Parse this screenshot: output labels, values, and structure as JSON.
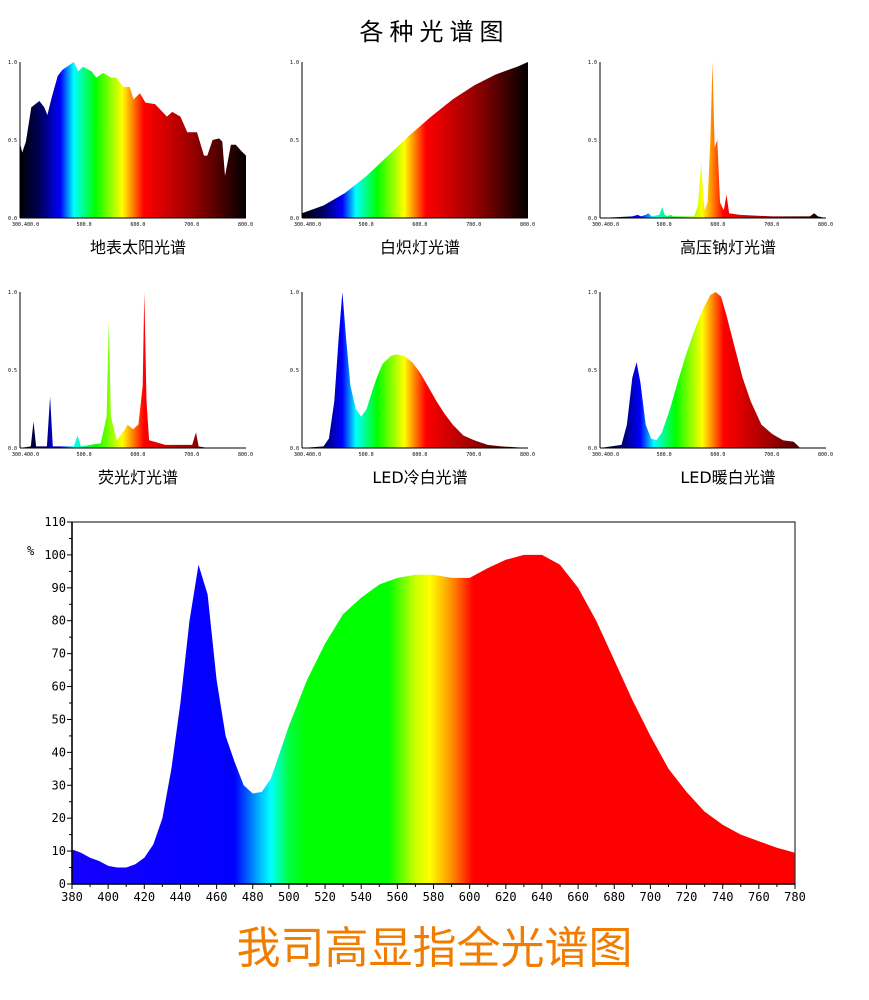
{
  "title": "各种光谱图",
  "bottom_caption": "我司高显指全光谱图",
  "spectrum_colors": {
    "dark": [
      [
        380,
        "#000000"
      ],
      [
        420,
        "#000066"
      ],
      [
        455,
        "#0000ff"
      ],
      [
        480,
        "#00ffff"
      ],
      [
        520,
        "#00ff00"
      ],
      [
        570,
        "#ffff00"
      ],
      [
        590,
        "#ff8000"
      ],
      [
        610,
        "#ff0000"
      ],
      [
        700,
        "#990000"
      ],
      [
        800,
        "#000000"
      ]
    ],
    "bright": [
      [
        380,
        "#1400ff"
      ],
      [
        470,
        "#0000ff"
      ],
      [
        485,
        "#00c8ff"
      ],
      [
        490,
        "#00ffff"
      ],
      [
        500,
        "#00ff40"
      ],
      [
        510,
        "#00ff00"
      ],
      [
        555,
        "#00ff00"
      ],
      [
        570,
        "#ccff00"
      ],
      [
        578,
        "#ffff00"
      ],
      [
        590,
        "#ff9000"
      ],
      [
        602,
        "#ff0000"
      ],
      [
        780,
        "#ff0000"
      ]
    ]
  },
  "chart_data": [
    {
      "type": "area",
      "caption": "地表太阳光谱",
      "xlim": [
        380,
        800
      ],
      "ylim": [
        0,
        1
      ],
      "yticks": [
        "0.0",
        "0.5",
        "1.0"
      ],
      "xticks": [
        "300.400.0",
        "500.0",
        "600.0",
        "700.0",
        "800.0"
      ],
      "palette": "dark",
      "x": [
        380,
        384,
        391,
        401,
        416,
        425,
        431,
        438,
        450,
        459,
        480,
        488,
        497,
        513,
        522,
        534,
        550,
        559,
        572,
        584,
        591,
        603,
        613,
        631,
        653,
        663,
        678,
        691,
        709,
        722,
        728,
        738,
        750,
        756,
        761,
        772,
        781,
        791,
        800
      ],
      "y": [
        0.48,
        0.42,
        0.49,
        0.71,
        0.75,
        0.71,
        0.66,
        0.76,
        0.91,
        0.95,
        1.0,
        0.94,
        0.97,
        0.94,
        0.9,
        0.93,
        0.9,
        0.9,
        0.84,
        0.84,
        0.76,
        0.8,
        0.74,
        0.73,
        0.65,
        0.68,
        0.65,
        0.55,
        0.55,
        0.4,
        0.4,
        0.5,
        0.51,
        0.49,
        0.27,
        0.47,
        0.47,
        0.43,
        0.4
      ]
    },
    {
      "type": "area",
      "caption": "白炽灯光谱",
      "xlim": [
        380,
        800
      ],
      "ylim": [
        0,
        1
      ],
      "yticks": [
        "0.0",
        "0.5",
        "1.0"
      ],
      "xticks": [
        "300.400.0",
        "500.0",
        "600.0",
        "700.0",
        "800.0"
      ],
      "palette": "dark",
      "x": [
        380,
        420,
        460,
        500,
        540,
        580,
        620,
        660,
        700,
        740,
        780,
        800
      ],
      "y": [
        0.03,
        0.08,
        0.16,
        0.27,
        0.4,
        0.53,
        0.65,
        0.76,
        0.85,
        0.92,
        0.97,
        1.0
      ]
    },
    {
      "type": "area",
      "caption": "高压钠灯光谱",
      "xlim": [
        380,
        800
      ],
      "ylim": [
        0,
        1
      ],
      "yticks": [
        "0.0",
        "0.5",
        "1.0"
      ],
      "xticks": [
        "300.400.0",
        "500.0",
        "600.0",
        "700.0",
        "800.0"
      ],
      "palette": "dark",
      "x": [
        380,
        440,
        450,
        456,
        465,
        470,
        476,
        490,
        496,
        500,
        505,
        512,
        515,
        520,
        555,
        562,
        568,
        574,
        580,
        585,
        589,
        593,
        598,
        603,
        610,
        615,
        620,
        640,
        700,
        770,
        778,
        785,
        800
      ],
      "y": [
        0.0,
        0.01,
        0.02,
        0.01,
        0.02,
        0.03,
        0.01,
        0.02,
        0.07,
        0.02,
        0.01,
        0.02,
        0.01,
        0.01,
        0.01,
        0.08,
        0.35,
        0.05,
        0.1,
        0.5,
        1.0,
        0.45,
        0.5,
        0.1,
        0.05,
        0.15,
        0.03,
        0.02,
        0.01,
        0.01,
        0.03,
        0.01,
        0.0
      ]
    },
    {
      "type": "area",
      "caption": "荧光灯光谱",
      "xlim": [
        380,
        800
      ],
      "ylim": [
        0,
        1
      ],
      "yticks": [
        "0.0",
        "0.5",
        "1.0"
      ],
      "xticks": [
        "300.400.0",
        "500.0",
        "600.0",
        "700.0",
        "800.0"
      ],
      "palette": "dark",
      "x": [
        380,
        400,
        405,
        410,
        430,
        436,
        441,
        480,
        487,
        493,
        530,
        541,
        545,
        549,
        560,
        575,
        580,
        590,
        600,
        608,
        611,
        615,
        620,
        630,
        650,
        700,
        707,
        712,
        730,
        800
      ],
      "y": [
        0.0,
        0.01,
        0.17,
        0.01,
        0.01,
        0.33,
        0.01,
        0.01,
        0.08,
        0.01,
        0.03,
        0.2,
        0.82,
        0.2,
        0.05,
        0.12,
        0.15,
        0.12,
        0.15,
        0.4,
        1.0,
        0.3,
        0.05,
        0.04,
        0.02,
        0.02,
        0.1,
        0.01,
        0.0,
        0.0
      ]
    },
    {
      "type": "area",
      "caption": "LED冷白光谱",
      "xlim": [
        380,
        800
      ],
      "ylim": [
        0,
        1
      ],
      "yticks": [
        "0.0",
        "0.5",
        "1.0"
      ],
      "xticks": [
        "300.400.0",
        "500.0",
        "600.0",
        "700.0",
        "800.0"
      ],
      "palette": "dark",
      "x": [
        380,
        420,
        430,
        440,
        448,
        455,
        462,
        470,
        480,
        490,
        500,
        510,
        520,
        530,
        545,
        555,
        570,
        585,
        600,
        615,
        630,
        645,
        660,
        680,
        700,
        725,
        750,
        800
      ],
      "y": [
        0.0,
        0.01,
        0.06,
        0.3,
        0.7,
        1.0,
        0.7,
        0.4,
        0.25,
        0.2,
        0.25,
        0.36,
        0.46,
        0.54,
        0.59,
        0.6,
        0.59,
        0.55,
        0.48,
        0.39,
        0.3,
        0.22,
        0.15,
        0.08,
        0.05,
        0.02,
        0.01,
        0.0
      ]
    },
    {
      "type": "area",
      "caption": "LED暖白光谱",
      "xlim": [
        380,
        800
      ],
      "ylim": [
        0,
        1
      ],
      "yticks": [
        "0.0",
        "0.5",
        "1.0"
      ],
      "xticks": [
        "300.400.0",
        "500.0",
        "600.0",
        "700.0",
        "800.0"
      ],
      "palette": "dark",
      "x": [
        380,
        420,
        430,
        440,
        448,
        455,
        465,
        475,
        485,
        495,
        510,
        525,
        540,
        555,
        570,
        585,
        595,
        605,
        615,
        630,
        645,
        660,
        680,
        700,
        720,
        740,
        752,
        800
      ],
      "y": [
        0.0,
        0.02,
        0.15,
        0.45,
        0.55,
        0.42,
        0.15,
        0.06,
        0.05,
        0.1,
        0.25,
        0.43,
        0.6,
        0.75,
        0.88,
        0.98,
        1.0,
        0.97,
        0.85,
        0.65,
        0.45,
        0.3,
        0.15,
        0.09,
        0.05,
        0.04,
        0.0,
        0.0
      ]
    },
    {
      "type": "area",
      "ylabel": "%",
      "xlim": [
        380,
        780
      ],
      "ylim": [
        0,
        110
      ],
      "grid": false,
      "palette": "bright",
      "yticks": [
        0,
        10,
        20,
        30,
        40,
        50,
        60,
        70,
        80,
        90,
        100,
        110
      ],
      "xticks": [
        380,
        400,
        420,
        440,
        460,
        480,
        500,
        520,
        540,
        560,
        580,
        600,
        620,
        640,
        660,
        680,
        700,
        720,
        740,
        760,
        780
      ],
      "x": [
        380,
        385,
        390,
        395,
        400,
        405,
        410,
        415,
        420,
        425,
        430,
        435,
        440,
        445,
        450,
        455,
        460,
        465,
        470,
        475,
        480,
        485,
        490,
        495,
        500,
        510,
        520,
        530,
        540,
        550,
        560,
        570,
        580,
        590,
        600,
        610,
        620,
        630,
        640,
        650,
        660,
        670,
        680,
        690,
        700,
        710,
        720,
        730,
        740,
        750,
        760,
        770,
        780
      ],
      "y": [
        10.5,
        9.5,
        8,
        7,
        5.5,
        5,
        5,
        6,
        8,
        12,
        20,
        35,
        55,
        80,
        97,
        88,
        62,
        45,
        37,
        30,
        27.5,
        28,
        32,
        40,
        48,
        62,
        73,
        82,
        87,
        91,
        93,
        94,
        94,
        93,
        93,
        96,
        98.5,
        100,
        100,
        97,
        90,
        80,
        68,
        56,
        45,
        35,
        28,
        22,
        18,
        15,
        13,
        11,
        9.5
      ]
    }
  ]
}
